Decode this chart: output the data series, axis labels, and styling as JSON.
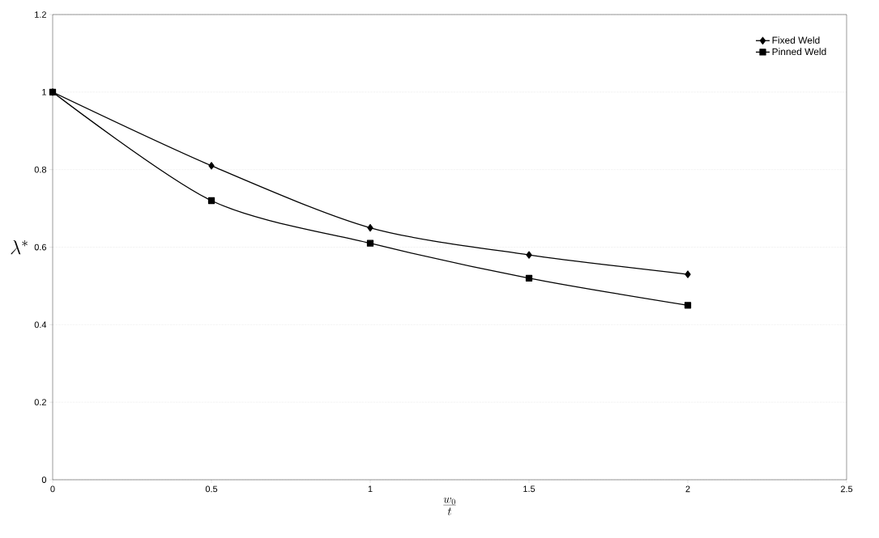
{
  "chart_data": {
    "type": "line",
    "xlabel": "\\frac{w_0}{t}",
    "ylabel": "\\lambda^*",
    "x": [
      0,
      0.5,
      1,
      1.5,
      2
    ],
    "series": [
      {
        "name": "Fixed Weld",
        "color": "#000000",
        "marker": "diamond",
        "values": [
          1,
          0.81,
          0.65,
          0.58,
          0.53
        ]
      },
      {
        "name": "Pinned Weld",
        "color": "#000000",
        "marker": "square",
        "values": [
          1,
          0.72,
          0.61,
          0.52,
          0.45
        ]
      }
    ],
    "xlim": [
      0,
      2.5
    ],
    "xticks": [
      0,
      0.5,
      1,
      1.5,
      2,
      2.5
    ],
    "ylim": [
      0,
      1.2
    ],
    "yticks": [
      0,
      0.2,
      0.4,
      0.6,
      0.8,
      1,
      1.2
    ],
    "grid": "y",
    "legend": "top right",
    "line_style": "solid"
  }
}
